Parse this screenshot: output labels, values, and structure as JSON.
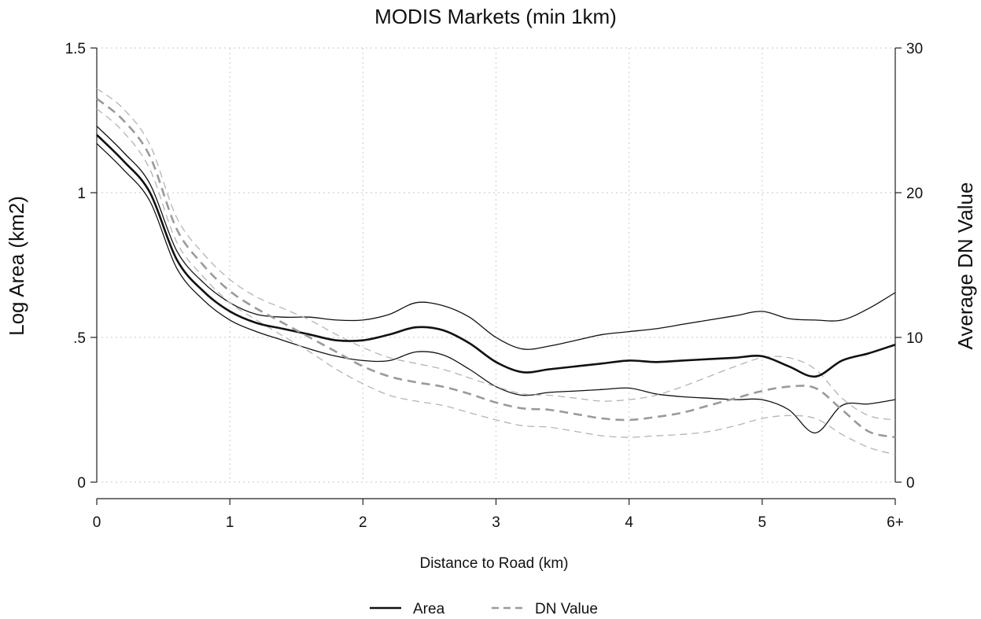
{
  "chart_data": {
    "type": "line",
    "title": "MODIS Markets (min 1km)",
    "xlabel": "Distance to Road (km)",
    "ylabel_left": "Log Area (km2)",
    "ylabel_right": "Average DN Value",
    "xlim": [
      0,
      6
    ],
    "ylim_left": [
      0,
      1.5
    ],
    "ylim_right": [
      0,
      30
    ],
    "x_ticks": [
      0,
      1,
      2,
      3,
      4,
      5,
      6
    ],
    "x_tick_labels": [
      "0",
      "1",
      "2",
      "3",
      "4",
      "5",
      "6+"
    ],
    "y_left_ticks": [
      0,
      0.5,
      1,
      1.5
    ],
    "y_left_tick_labels": [
      "0",
      ".5",
      "1",
      "1.5"
    ],
    "y_right_ticks": [
      0,
      10,
      20,
      30
    ],
    "y_right_tick_labels": [
      "0",
      "10",
      "20",
      "30"
    ],
    "grid": true,
    "legend_position": "bottom",
    "legend": [
      {
        "label": "Area",
        "style": "solid",
        "color": "#111111"
      },
      {
        "label": "DN Value",
        "style": "dashed",
        "color": "#9a9a9a"
      }
    ],
    "x": [
      0,
      0.2,
      0.4,
      0.6,
      0.8,
      1.0,
      1.2,
      1.4,
      1.6,
      1.8,
      2.0,
      2.2,
      2.4,
      2.6,
      2.8,
      3.0,
      3.2,
      3.4,
      3.6,
      3.8,
      4.0,
      4.2,
      4.4,
      4.6,
      4.8,
      5.0,
      5.2,
      5.4,
      5.6,
      5.8,
      6.0
    ],
    "series": [
      {
        "name": "Area",
        "axis": "left",
        "role": "estimate",
        "color": "#111111",
        "dash": "solid",
        "width": 2.6,
        "values": [
          1.2,
          1.11,
          1.0,
          0.77,
          0.66,
          0.59,
          0.55,
          0.53,
          0.51,
          0.49,
          0.49,
          0.51,
          0.535,
          0.525,
          0.48,
          0.415,
          0.38,
          0.39,
          0.4,
          0.41,
          0.42,
          0.415,
          0.42,
          0.425,
          0.43,
          0.435,
          0.4,
          0.365,
          0.42,
          0.445,
          0.475
        ]
      },
      {
        "axis": "left",
        "role": "upper_ci",
        "color": "#111111",
        "dash": "solid",
        "width": 1.3,
        "values": [
          1.23,
          1.14,
          1.03,
          0.8,
          0.69,
          0.62,
          0.58,
          0.57,
          0.57,
          0.56,
          0.56,
          0.58,
          0.62,
          0.61,
          0.57,
          0.5,
          0.46,
          0.47,
          0.49,
          0.51,
          0.52,
          0.53,
          0.545,
          0.56,
          0.575,
          0.59,
          0.565,
          0.56,
          0.56,
          0.6,
          0.655
        ]
      },
      {
        "axis": "left",
        "role": "lower_ci",
        "color": "#111111",
        "dash": "solid",
        "width": 1.3,
        "values": [
          1.17,
          1.08,
          0.97,
          0.74,
          0.63,
          0.56,
          0.52,
          0.49,
          0.46,
          0.435,
          0.42,
          0.42,
          0.45,
          0.44,
          0.39,
          0.33,
          0.3,
          0.31,
          0.315,
          0.32,
          0.325,
          0.305,
          0.295,
          0.29,
          0.285,
          0.285,
          0.25,
          0.17,
          0.265,
          0.27,
          0.285
        ]
      },
      {
        "name": "DN Value",
        "axis": "right",
        "role": "estimate",
        "color": "#9a9a9a",
        "dash": "dashed",
        "width": 2.6,
        "values": [
          26.5,
          25.0,
          22.5,
          17.5,
          15.0,
          13.2,
          12.0,
          11.0,
          10.0,
          9.0,
          8.0,
          7.3,
          6.9,
          6.6,
          6.1,
          5.5,
          5.1,
          5.0,
          4.7,
          4.4,
          4.3,
          4.5,
          4.8,
          5.3,
          5.8,
          6.3,
          6.6,
          6.5,
          5.0,
          3.5,
          3.1
        ]
      },
      {
        "axis": "right",
        "role": "upper_ci",
        "color": "#b4b4b4",
        "dash": "dashed",
        "width": 1.3,
        "values": [
          27.2,
          25.8,
          23.3,
          18.3,
          15.8,
          14.0,
          12.8,
          12.0,
          11.2,
          10.2,
          9.3,
          8.6,
          8.2,
          7.8,
          7.2,
          6.6,
          6.1,
          6.0,
          5.8,
          5.6,
          5.7,
          6.0,
          6.6,
          7.3,
          8.0,
          8.6,
          8.6,
          7.8,
          5.8,
          4.6,
          4.3
        ]
      },
      {
        "axis": "right",
        "role": "lower_ci",
        "color": "#b4b4b4",
        "dash": "dashed",
        "width": 1.3,
        "values": [
          25.8,
          24.2,
          21.6,
          16.6,
          14.2,
          12.4,
          11.2,
          10.1,
          9.0,
          7.8,
          6.8,
          6.0,
          5.6,
          5.3,
          4.8,
          4.3,
          3.9,
          3.8,
          3.5,
          3.2,
          3.1,
          3.2,
          3.3,
          3.5,
          3.9,
          4.4,
          4.6,
          4.4,
          3.3,
          2.4,
          1.9
        ]
      }
    ]
  }
}
